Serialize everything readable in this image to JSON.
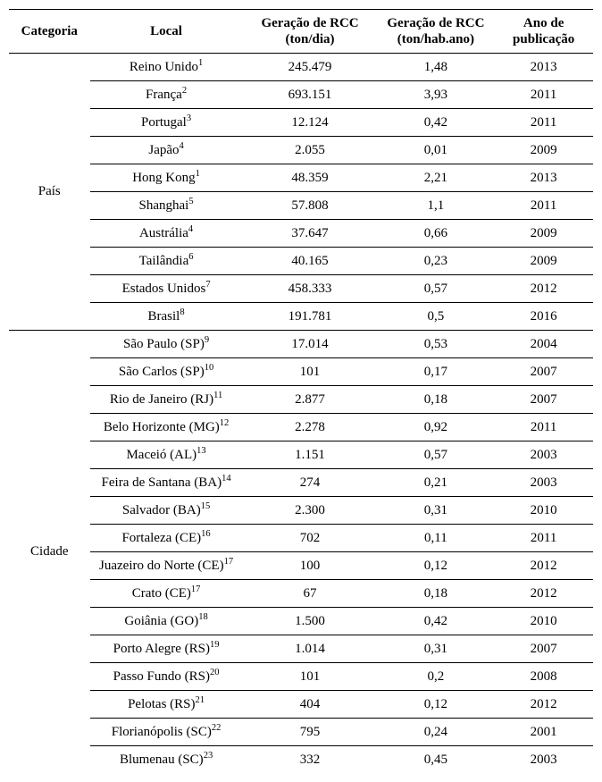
{
  "headers": {
    "categoria": "Categoria",
    "local": "Local",
    "geracao_dia": "Geração de RCC (ton/dia)",
    "geracao_hab": "Geração de RCC (ton/hab.ano)",
    "ano": "Ano de publicação"
  },
  "sections": [
    {
      "category": "País",
      "rows": [
        {
          "local": "Reino Unido",
          "sup": "1",
          "dia": "245.479",
          "hab": "1,48",
          "ano": "2013"
        },
        {
          "local": "França",
          "sup": "2",
          "dia": "693.151",
          "hab": "3,93",
          "ano": "2011"
        },
        {
          "local": "Portugal",
          "sup": "3",
          "dia": "12.124",
          "hab": "0,42",
          "ano": "2011"
        },
        {
          "local": "Japão",
          "sup": "4",
          "dia": "2.055",
          "hab": "0,01",
          "ano": "2009"
        },
        {
          "local": "Hong Kong",
          "sup": "1",
          "dia": "48.359",
          "hab": "2,21",
          "ano": "2013"
        },
        {
          "local": "Shanghai",
          "sup": "5",
          "dia": "57.808",
          "hab": "1,1",
          "ano": "2011"
        },
        {
          "local": "Austrália",
          "sup": "4",
          "dia": "37.647",
          "hab": "0,66",
          "ano": "2009"
        },
        {
          "local": "Tailândia",
          "sup": "6",
          "dia": "40.165",
          "hab": "0,23",
          "ano": "2009"
        },
        {
          "local": "Estados Unidos",
          "sup": "7",
          "dia": "458.333",
          "hab": "0,57",
          "ano": "2012"
        },
        {
          "local": "Brasil",
          "sup": "8",
          "dia": "191.781",
          "hab": "0,5",
          "ano": "2016"
        }
      ]
    },
    {
      "category": "Cidade",
      "rows": [
        {
          "local": "São Paulo (SP)",
          "sup": "9",
          "dia": "17.014",
          "hab": "0,53",
          "ano": "2004"
        },
        {
          "local": "São Carlos (SP)",
          "sup": "10",
          "dia": "101",
          "hab": "0,17",
          "ano": "2007"
        },
        {
          "local": "Rio de Janeiro (RJ)",
          "sup": "11",
          "dia": "2.877",
          "hab": "0,18",
          "ano": "2007"
        },
        {
          "local": "Belo Horizonte (MG)",
          "sup": "12",
          "dia": "2.278",
          "hab": "0,92",
          "ano": "2011"
        },
        {
          "local": "Maceió (AL)",
          "sup": "13",
          "dia": "1.151",
          "hab": "0,57",
          "ano": "2003"
        },
        {
          "local": "Feira de Santana (BA)",
          "sup": "14",
          "dia": "274",
          "hab": "0,21",
          "ano": "2003"
        },
        {
          "local": "Salvador (BA)",
          "sup": "15",
          "dia": "2.300",
          "hab": "0,31",
          "ano": "2010"
        },
        {
          "local": "Fortaleza (CE)",
          "sup": "16",
          "dia": "702",
          "hab": "0,11",
          "ano": "2011"
        },
        {
          "local": "Juazeiro do Norte (CE)",
          "sup": "17",
          "dia": "100",
          "hab": "0,12",
          "ano": "2012"
        },
        {
          "local": "Crato (CE)",
          "sup": "17",
          "dia": "67",
          "hab": "0,18",
          "ano": "2012"
        },
        {
          "local": "Goiânia (GO)",
          "sup": "18",
          "dia": "1.500",
          "hab": "0,42",
          "ano": "2010"
        },
        {
          "local": "Porto Alegre (RS)",
          "sup": "19",
          "dia": "1.014",
          "hab": "0,31",
          "ano": "2007"
        },
        {
          "local": "Passo Fundo (RS)",
          "sup": "20",
          "dia": "101",
          "hab": "0,2",
          "ano": "2008"
        },
        {
          "local": "Pelotas (RS)",
          "sup": "21",
          "dia": "404",
          "hab": "0,12",
          "ano": "2012"
        },
        {
          "local": "Florianópolis (SC)",
          "sup": "22",
          "dia": "795",
          "hab": "0,24",
          "ano": "2001"
        },
        {
          "local": "Blumenau (SC)",
          "sup": "23",
          "dia": "332",
          "hab": "0,45",
          "ano": "2003"
        }
      ]
    }
  ]
}
